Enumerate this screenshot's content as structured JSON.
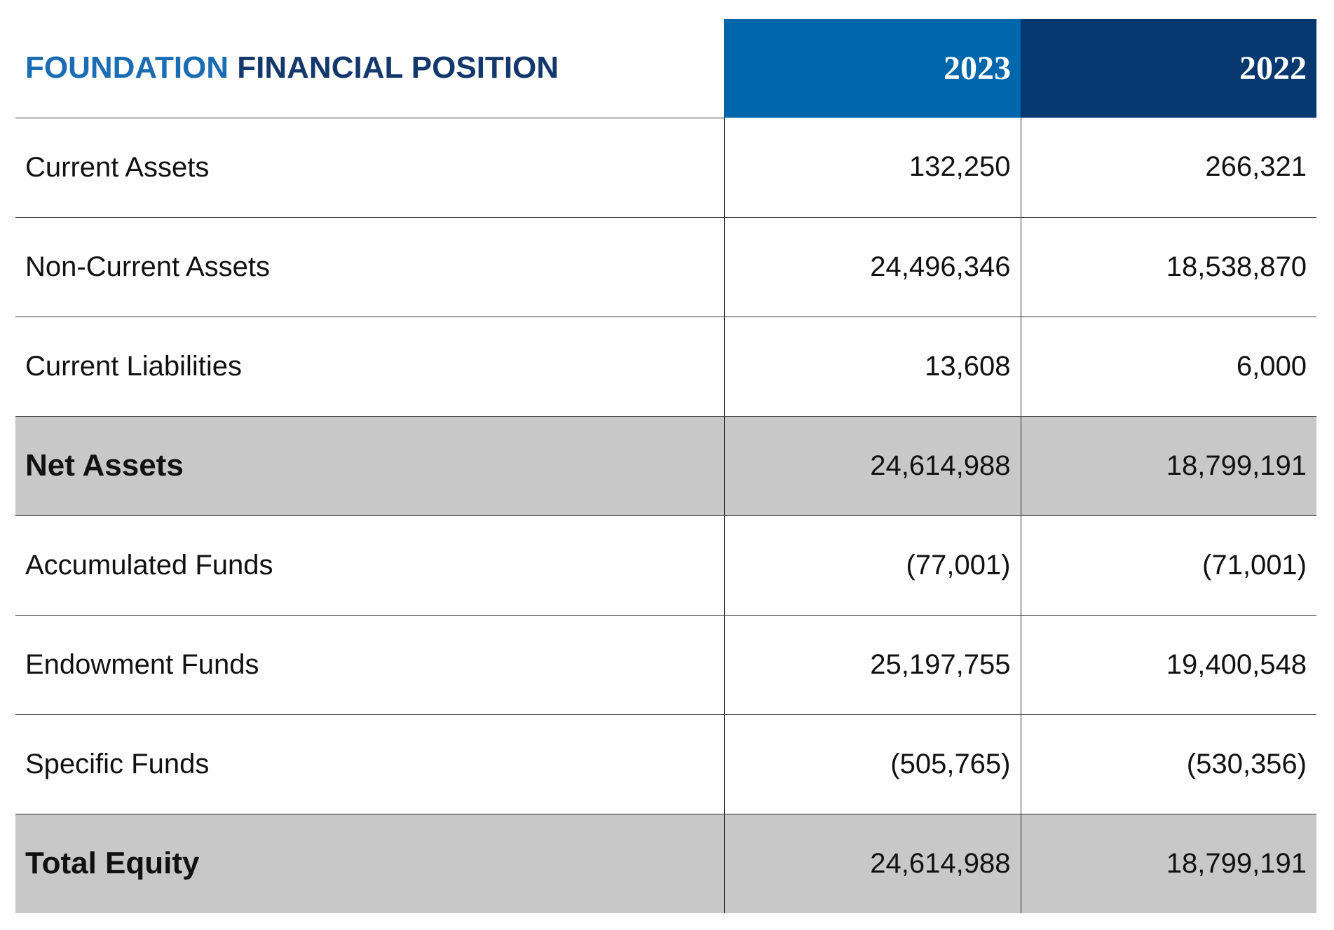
{
  "title": [
    "FOUNDATION",
    "FINANCIAL POSITION"
  ],
  "table": {
    "headers": [
      "2023",
      "2022"
    ],
    "rows": [
      {
        "label": "Current Assets",
        "values": [
          "132,250",
          "266,321"
        ]
      },
      {
        "label": "Non-Current Assets",
        "values": [
          "24,496,346",
          "18,538,870"
        ]
      },
      {
        "label": "Current Liabilities",
        "values": [
          "13,608",
          "6,000"
        ]
      },
      {
        "label": "Net Assets",
        "values": [
          "24,614,988",
          "18,799,191"
        ],
        "emphasis": true
      },
      {
        "label": "Accumulated Funds",
        "values": [
          "(77,001)",
          "(71,001)"
        ]
      },
      {
        "label": "Endowment Funds",
        "values": [
          "25,197,755",
          "19,400,548"
        ]
      },
      {
        "label": "Specific Funds",
        "values": [
          "(505,765)",
          "(530,356)"
        ]
      },
      {
        "label": "Total Equity",
        "values": [
          "24,614,988",
          "18,799,191"
        ],
        "emphasis": true
      }
    ]
  }
}
